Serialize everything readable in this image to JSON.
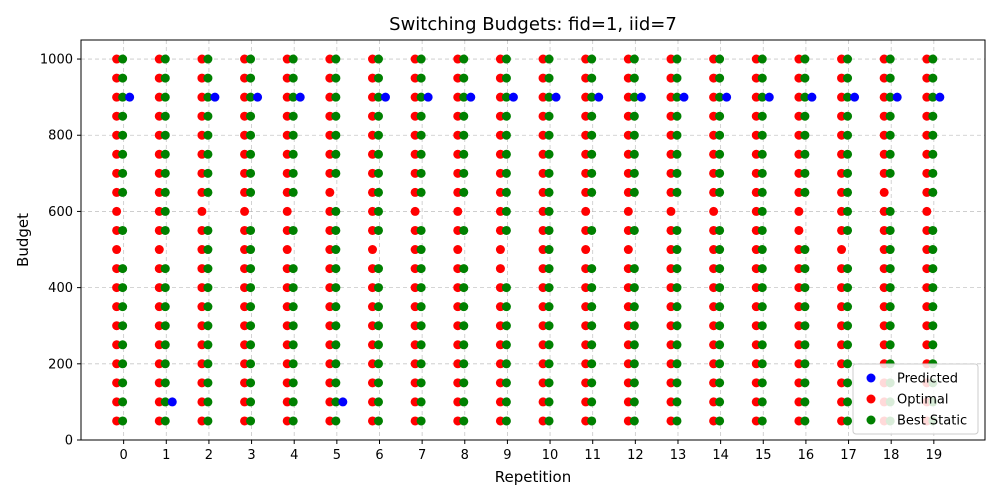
{
  "chart_data": {
    "type": "scatter",
    "title": "Switching Budgets: fid=1, iid=7",
    "xlabel": "Repetition",
    "ylabel": "Budget",
    "x_ticks": [
      0,
      1,
      2,
      3,
      4,
      5,
      6,
      7,
      8,
      9,
      10,
      11,
      12,
      13,
      14,
      15,
      16,
      17,
      18,
      19
    ],
    "y_ticks": [
      0,
      200,
      400,
      600,
      800,
      1000
    ],
    "xlim": [
      -1,
      20.2
    ],
    "ylim": [
      0,
      1050
    ],
    "grid": true,
    "legend_position": "lower-right",
    "series": [
      {
        "name": "Predicted",
        "color": "#0000ff",
        "points": [
          [
            0,
            900
          ],
          [
            1,
            100
          ],
          [
            2,
            900
          ],
          [
            3,
            900
          ],
          [
            4,
            900
          ],
          [
            5,
            100
          ],
          [
            6,
            900
          ],
          [
            7,
            900
          ],
          [
            8,
            900
          ],
          [
            9,
            900
          ],
          [
            10,
            900
          ],
          [
            11,
            900
          ],
          [
            12,
            900
          ],
          [
            13,
            900
          ],
          [
            14,
            900
          ],
          [
            15,
            900
          ],
          [
            16,
            900
          ],
          [
            17,
            900
          ],
          [
            18,
            900
          ],
          [
            19,
            900
          ]
        ]
      },
      {
        "name": "Optimal",
        "color": "#ff0000",
        "points_per_repetition": [
          [
            50,
            100,
            150,
            200,
            250,
            300,
            350,
            400,
            450,
            500,
            550,
            600,
            650,
            700,
            750,
            800,
            850,
            900,
            950,
            1000
          ],
          [
            50,
            100,
            150,
            200,
            250,
            300,
            350,
            400,
            450,
            500,
            550,
            600,
            650,
            700,
            750,
            800,
            850,
            900,
            950,
            1000
          ],
          [
            50,
            100,
            150,
            200,
            250,
            300,
            350,
            400,
            450,
            500,
            550,
            600,
            650,
            700,
            750,
            800,
            850,
            900,
            950,
            1000
          ],
          [
            50,
            100,
            150,
            200,
            250,
            300,
            350,
            400,
            450,
            500,
            550,
            600,
            650,
            700,
            750,
            800,
            850,
            900,
            950,
            1000
          ],
          [
            50,
            100,
            150,
            200,
            250,
            300,
            350,
            400,
            450,
            500,
            550,
            600,
            650,
            700,
            750,
            800,
            850,
            900,
            950,
            1000
          ],
          [
            50,
            100,
            150,
            200,
            250,
            300,
            350,
            400,
            450,
            500,
            550,
            600,
            650,
            700,
            750,
            800,
            850,
            900,
            950,
            1000
          ],
          [
            50,
            100,
            150,
            200,
            250,
            300,
            350,
            400,
            450,
            500,
            550,
            600,
            650,
            700,
            750,
            800,
            850,
            900,
            950,
            1000
          ],
          [
            50,
            100,
            150,
            200,
            250,
            300,
            350,
            400,
            450,
            500,
            550,
            600,
            650,
            700,
            750,
            800,
            850,
            900,
            950,
            1000
          ],
          [
            50,
            100,
            150,
            200,
            250,
            300,
            350,
            400,
            450,
            500,
            550,
            600,
            650,
            700,
            750,
            800,
            850,
            900,
            950,
            1000
          ],
          [
            50,
            100,
            150,
            200,
            250,
            300,
            350,
            400,
            450,
            500,
            550,
            600,
            650,
            700,
            750,
            800,
            850,
            900,
            950,
            1000
          ],
          [
            50,
            100,
            150,
            200,
            250,
            300,
            350,
            400,
            450,
            500,
            550,
            600,
            650,
            700,
            750,
            800,
            850,
            900,
            950,
            1000
          ],
          [
            50,
            100,
            150,
            200,
            250,
            300,
            350,
            400,
            450,
            500,
            550,
            600,
            650,
            700,
            750,
            800,
            850,
            900,
            950,
            1000
          ],
          [
            50,
            100,
            150,
            200,
            250,
            300,
            350,
            400,
            450,
            500,
            550,
            600,
            650,
            700,
            750,
            800,
            850,
            900,
            950,
            1000
          ],
          [
            50,
            100,
            150,
            200,
            250,
            300,
            350,
            400,
            450,
            500,
            550,
            600,
            650,
            700,
            750,
            800,
            850,
            900,
            950,
            1000
          ],
          [
            50,
            100,
            150,
            200,
            250,
            300,
            350,
            400,
            450,
            500,
            550,
            600,
            650,
            700,
            750,
            800,
            850,
            900,
            950,
            1000
          ],
          [
            50,
            100,
            150,
            200,
            250,
            300,
            350,
            400,
            450,
            500,
            550,
            600,
            650,
            700,
            750,
            800,
            850,
            900,
            950,
            1000
          ],
          [
            50,
            100,
            150,
            200,
            250,
            300,
            350,
            400,
            450,
            500,
            550,
            600,
            650,
            700,
            750,
            800,
            850,
            900,
            950,
            1000
          ],
          [
            50,
            100,
            150,
            200,
            250,
            300,
            350,
            400,
            450,
            500,
            550,
            600,
            650,
            700,
            750,
            800,
            850,
            900,
            950,
            1000
          ],
          [
            50,
            100,
            150,
            200,
            250,
            300,
            350,
            400,
            450,
            500,
            550,
            600,
            650,
            700,
            750,
            800,
            850,
            900,
            950,
            1000
          ],
          [
            50,
            100,
            150,
            200,
            250,
            300,
            350,
            400,
            450,
            500,
            550,
            600,
            650,
            700,
            750,
            800,
            850,
            900,
            950,
            1000
          ]
        ]
      },
      {
        "name": "Best Static",
        "color": "#008000",
        "points_per_repetition": [
          [
            50,
            100,
            150,
            200,
            250,
            300,
            350,
            400,
            450,
            550,
            650,
            700,
            750,
            800,
            850,
            900,
            950,
            1000
          ],
          [
            50,
            100,
            150,
            200,
            250,
            300,
            350,
            400,
            450,
            550,
            600,
            650,
            700,
            750,
            800,
            850,
            900,
            950,
            1000
          ],
          [
            50,
            100,
            150,
            200,
            250,
            300,
            350,
            400,
            450,
            500,
            550,
            650,
            700,
            750,
            800,
            850,
            900,
            950,
            1000
          ],
          [
            50,
            100,
            150,
            200,
            250,
            300,
            350,
            400,
            450,
            500,
            550,
            650,
            700,
            750,
            800,
            850,
            900,
            950,
            1000
          ],
          [
            50,
            100,
            150,
            200,
            250,
            300,
            350,
            400,
            450,
            550,
            650,
            700,
            750,
            800,
            850,
            900,
            950,
            1000
          ],
          [
            50,
            100,
            150,
            200,
            250,
            300,
            350,
            400,
            450,
            500,
            550,
            600,
            700,
            750,
            800,
            850,
            900,
            950,
            1000
          ],
          [
            50,
            100,
            150,
            200,
            250,
            300,
            350,
            400,
            450,
            550,
            600,
            650,
            700,
            750,
            800,
            850,
            900,
            950,
            1000
          ],
          [
            50,
            100,
            150,
            200,
            250,
            300,
            350,
            400,
            450,
            500,
            550,
            650,
            700,
            750,
            800,
            850,
            900,
            950,
            1000
          ],
          [
            50,
            100,
            150,
            200,
            250,
            300,
            350,
            400,
            450,
            550,
            650,
            700,
            750,
            800,
            850,
            900,
            950,
            1000
          ],
          [
            50,
            100,
            150,
            200,
            250,
            300,
            350,
            400,
            550,
            600,
            650,
            700,
            750,
            800,
            850,
            900,
            950,
            1000
          ],
          [
            50,
            100,
            150,
            200,
            250,
            300,
            350,
            400,
            450,
            500,
            550,
            600,
            650,
            700,
            750,
            800,
            850,
            900,
            950,
            1000
          ],
          [
            50,
            100,
            150,
            200,
            250,
            300,
            350,
            400,
            450,
            550,
            650,
            700,
            750,
            800,
            850,
            900,
            950,
            1000
          ],
          [
            50,
            100,
            150,
            200,
            250,
            300,
            350,
            400,
            450,
            550,
            650,
            700,
            750,
            800,
            850,
            900,
            950,
            1000
          ],
          [
            50,
            100,
            150,
            200,
            250,
            300,
            350,
            400,
            450,
            500,
            550,
            650,
            700,
            750,
            800,
            850,
            900,
            950,
            1000
          ],
          [
            50,
            100,
            150,
            200,
            250,
            300,
            350,
            400,
            450,
            500,
            550,
            650,
            700,
            750,
            800,
            850,
            900,
            950,
            1000
          ],
          [
            50,
            100,
            150,
            200,
            250,
            300,
            350,
            400,
            450,
            500,
            550,
            600,
            650,
            700,
            750,
            800,
            850,
            900,
            950,
            1000
          ],
          [
            50,
            100,
            150,
            200,
            250,
            300,
            350,
            400,
            450,
            500,
            650,
            700,
            750,
            800,
            850,
            900,
            950,
            1000
          ],
          [
            50,
            100,
            150,
            200,
            250,
            300,
            350,
            400,
            450,
            550,
            600,
            650,
            700,
            750,
            800,
            850,
            900,
            950,
            1000
          ],
          [
            50,
            100,
            150,
            200,
            250,
            300,
            350,
            400,
            450,
            500,
            550,
            600,
            700,
            750,
            800,
            850,
            900,
            950,
            1000
          ],
          [
            50,
            100,
            150,
            200,
            250,
            300,
            350,
            400,
            450,
            500,
            550,
            650,
            700,
            750,
            800,
            850,
            900,
            950,
            1000
          ]
        ]
      }
    ]
  }
}
